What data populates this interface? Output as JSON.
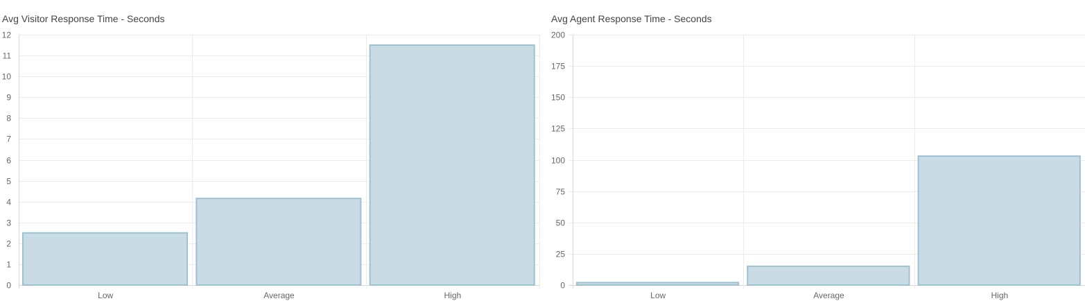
{
  "chart_data": [
    {
      "type": "bar",
      "title": "Avg Visitor Response Time - Seconds",
      "categories": [
        "Low",
        "Average",
        "High"
      ],
      "values": [
        2.5,
        4.15,
        11.5
      ],
      "ylim": [
        0,
        12
      ],
      "yticks": [
        0,
        1,
        2,
        3,
        4,
        5,
        6,
        7,
        8,
        9,
        10,
        11,
        12
      ],
      "grid": true,
      "bar_fill": "#c9dce6",
      "bar_stroke": "#9fc1cf"
    },
    {
      "type": "bar",
      "title": "Avg Agent Response Time - Seconds",
      "categories": [
        "Low",
        "Average",
        "High"
      ],
      "values": [
        2,
        15,
        103
      ],
      "ylim": [
        0,
        200
      ],
      "yticks": [
        0,
        25,
        50,
        75,
        100,
        125,
        150,
        175,
        200
      ],
      "grid": true,
      "bar_fill": "#c9dce6",
      "bar_stroke": "#9fc1cf"
    }
  ]
}
